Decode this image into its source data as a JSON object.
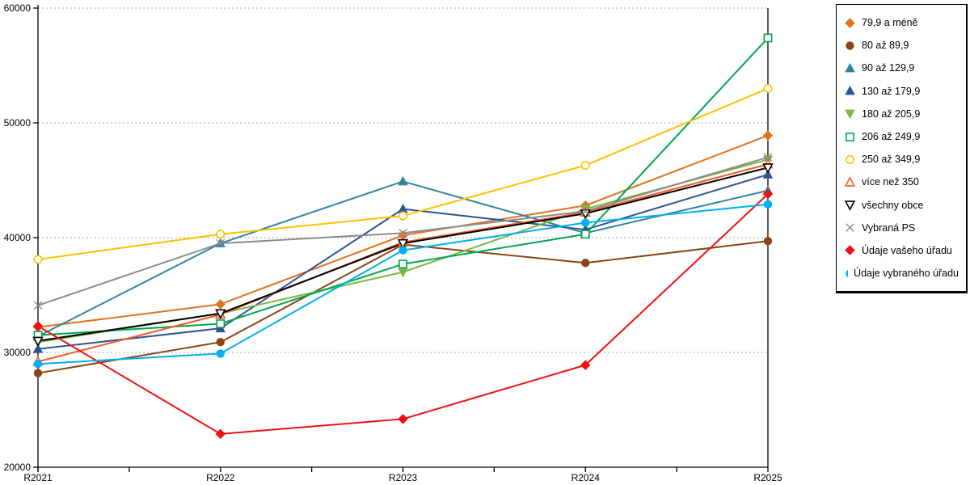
{
  "chart_data": {
    "type": "line",
    "title": "",
    "xlabel": "",
    "ylabel": "",
    "categories": [
      "R2021",
      "R2022",
      "R2023",
      "R2024",
      "R2025"
    ],
    "ylim": [
      20000,
      60000
    ],
    "ytick_step": 10000,
    "ytick_labels": [
      "20000",
      "30000",
      "40000",
      "50000",
      "60000"
    ],
    "grid": "horizontal-dashed",
    "legend_position": "right-outside-box",
    "series": [
      {
        "name": "79,9 a méně",
        "marker": "diamond",
        "filled": true,
        "color": "#E2731E",
        "values": [
          32200,
          34200,
          40200,
          42800,
          48900
        ]
      },
      {
        "name": "80 až 89,9",
        "marker": "circle",
        "filled": true,
        "color": "#8B4513",
        "values": [
          28200,
          30900,
          39400,
          37800,
          39700
        ]
      },
      {
        "name": "90 až 129,9",
        "marker": "triangle-up",
        "filled": true,
        "color": "#31859C",
        "values": [
          31400,
          39500,
          44900,
          40400,
          44100
        ]
      },
      {
        "name": "130 až 179,9",
        "marker": "triangle-up",
        "filled": true,
        "color": "#2F5496",
        "values": [
          30300,
          32100,
          42500,
          40700,
          45500
        ]
      },
      {
        "name": "180 až 205,9",
        "marker": "triangle-down",
        "filled": true,
        "color": "#7CB843",
        "values": [
          30900,
          33400,
          37000,
          42500,
          46800
        ]
      },
      {
        "name": "206 až 249,9",
        "marker": "square",
        "filled": false,
        "color": "#00A651",
        "values": [
          31500,
          32500,
          37700,
          40300,
          57400
        ]
      },
      {
        "name": "250 až 349,9",
        "marker": "circle",
        "filled": false,
        "color": "#FFC000",
        "values": [
          38100,
          40300,
          41900,
          46300,
          53000
        ]
      },
      {
        "name": "více než 350",
        "marker": "triangle-up",
        "filled": false,
        "color": "#F25B21",
        "values": [
          29200,
          33300,
          39600,
          42200,
          46400
        ]
      },
      {
        "name": "všechny obce",
        "marker": "triangle-down",
        "filled": false,
        "color": "#000000",
        "values": [
          31000,
          33400,
          39500,
          42100,
          46100
        ]
      },
      {
        "name": "Vybraná PS",
        "marker": "x",
        "filled": false,
        "color": "#8C8C8C",
        "values": [
          34100,
          39500,
          40400,
          42300,
          47000
        ]
      },
      {
        "name": "Údaje vašeho úřadu",
        "marker": "diamond",
        "filled": true,
        "color": "#EE1111",
        "values": [
          32300,
          22900,
          24200,
          28900,
          43800
        ]
      },
      {
        "name": "Údaje vybraného úřadu",
        "marker": "circle",
        "filled": true,
        "color": "#00B0F0",
        "values": [
          29000,
          29900,
          38900,
          41300,
          42900
        ]
      }
    ]
  }
}
